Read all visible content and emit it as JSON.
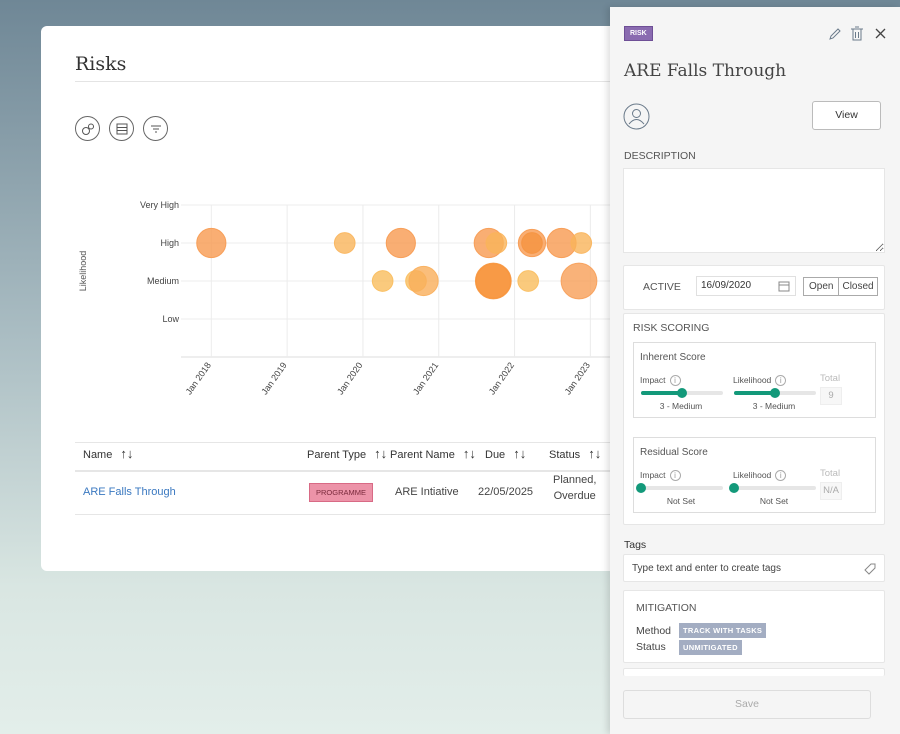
{
  "page": {
    "title": "Risks"
  },
  "view_buttons": [
    {
      "icon": "bubble-chart-icon"
    },
    {
      "icon": "table-icon"
    },
    {
      "icon": "filter-icon"
    }
  ],
  "chart_data": {
    "type": "scatter",
    "subtype": "bubble",
    "ylabel": "Likelihood",
    "y_categories": [
      "Low",
      "Medium",
      "High",
      "Very High"
    ],
    "x_ticks": [
      "Jan 2018",
      "Jan 2019",
      "Jan 2020",
      "Jan 2021",
      "Jan 2022",
      "Jan 2023"
    ],
    "xlim": [
      2017.6,
      2023.8
    ],
    "grid": true,
    "points": [
      {
        "x": 2018.0,
        "y": "High",
        "size": 4,
        "color": "#f79a50"
      },
      {
        "x": 2019.76,
        "y": "High",
        "size": 2,
        "color": "#f9b45a"
      },
      {
        "x": 2020.5,
        "y": "High",
        "size": 4,
        "color": "#f79a50"
      },
      {
        "x": 2021.66,
        "y": "High",
        "size": 4,
        "color": "#f79a50"
      },
      {
        "x": 2021.76,
        "y": "High",
        "size": 2,
        "color": "#f9b45a"
      },
      {
        "x": 2022.23,
        "y": "High",
        "size": 3.5,
        "color": "#f79a50"
      },
      {
        "x": 2022.23,
        "y": "High",
        "size": 2,
        "color": "#f59440"
      },
      {
        "x": 2022.62,
        "y": "High",
        "size": 4,
        "color": "#f79a50"
      },
      {
        "x": 2022.88,
        "y": "High",
        "size": 2,
        "color": "#f9b45a"
      },
      {
        "x": 2020.26,
        "y": "Medium",
        "size": 2,
        "color": "#f9bd5c"
      },
      {
        "x": 2020.7,
        "y": "Medium",
        "size": 2,
        "color": "#f9bd5c"
      },
      {
        "x": 2020.8,
        "y": "Medium",
        "size": 4,
        "color": "#f9ae5a"
      },
      {
        "x": 2021.72,
        "y": "Medium",
        "size": 6,
        "color": "#f7963e"
      },
      {
        "x": 2021.72,
        "y": "Medium",
        "size": 5.5,
        "color": "#f7963e"
      },
      {
        "x": 2022.18,
        "y": "Medium",
        "size": 2,
        "color": "#f9bd5c"
      },
      {
        "x": 2022.85,
        "y": "Medium",
        "size": 6,
        "color": "#f79f58"
      }
    ]
  },
  "table": {
    "columns": [
      "Name",
      "Parent Type",
      "Parent Name",
      "Due",
      "Status"
    ],
    "sort_icon": "↑↓",
    "rows": [
      {
        "name": "ARE Falls Through",
        "parent_type": "PROGRAMME",
        "parent_name": "ARE Intiative",
        "due": "22/05/2025",
        "status_line1": "Planned,",
        "status_line2": "Overdue"
      }
    ]
  },
  "panel": {
    "badge": "RISK",
    "title": "ARE Falls Through",
    "view_label": "View",
    "description_label": "DESCRIPTION",
    "description_value": "",
    "active_label": "ACTIVE",
    "active_date": "16/09/2020",
    "open_label": "Open",
    "closed_label": "Closed",
    "risk_scoring_label": "RISK SCORING",
    "inherent": {
      "title": "Inherent Score",
      "impact_label": "Impact",
      "likelihood_label": "Likelihood",
      "impact_value": "3 - Medium",
      "likelihood_value": "3 - Medium",
      "impact_level": 0.5,
      "likelihood_level": 0.5,
      "total_label": "Total",
      "total": "9"
    },
    "residual": {
      "title": "Residual Score",
      "impact_label": "Impact",
      "likelihood_label": "Likelihood",
      "impact_value": "Not Set",
      "likelihood_value": "Not Set",
      "impact_level": 0,
      "likelihood_level": 0,
      "total_label": "Total",
      "total": "N/A"
    },
    "tags_label": "Tags",
    "tags_placeholder": "Type text and enter to create tags",
    "mitigation_label": "MITIGATION",
    "method_label": "Method",
    "method_value": "TRACK WITH TASKS",
    "status_label": "Status",
    "status_value": "UNMITIGATED",
    "save_label": "Save",
    "info_glyph": "i"
  }
}
